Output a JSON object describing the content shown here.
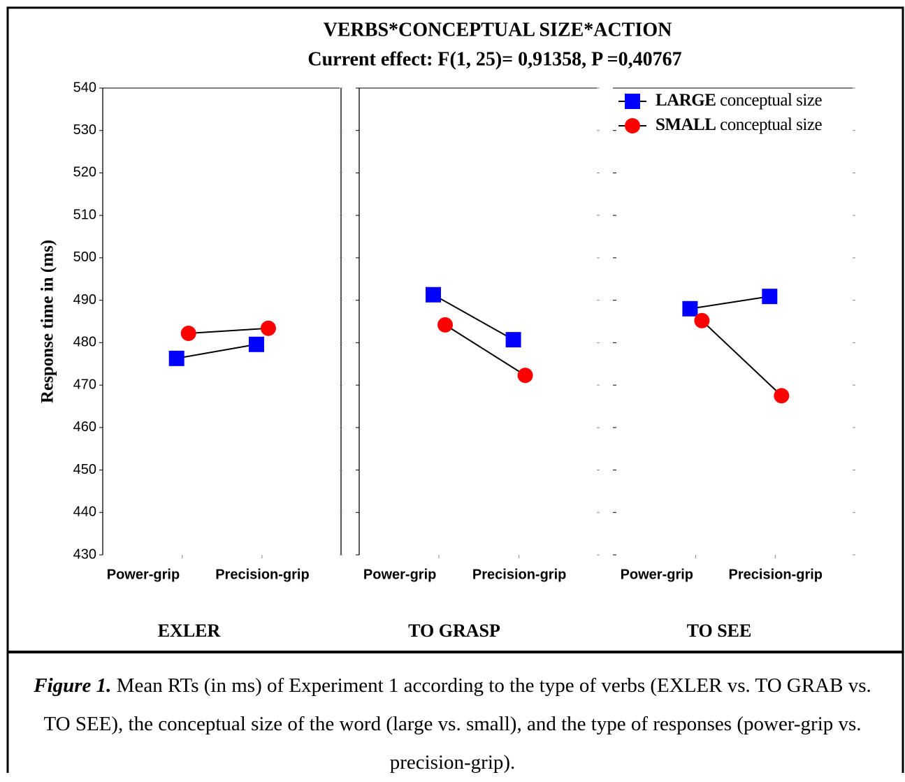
{
  "title": "VERBS*CONCEPTUAL SIZE*ACTION",
  "subtitle": "Current effect: F(1, 25)= 0,91358, P =0,40767",
  "chart_data": {
    "type": "line",
    "y_label": "Response time in (ms)",
    "panels": [
      "EXLER",
      "TO GRASP",
      "TO SEE"
    ],
    "categories": [
      "Power-grip",
      "Precision-grip"
    ],
    "series": [
      {
        "name": "LARGE conceptual size",
        "color": "#0000ff",
        "marker": "square",
        "values": [
          [
            476.3,
            479.6
          ],
          [
            491.3,
            480.7
          ],
          [
            488.0,
            490.9
          ]
        ]
      },
      {
        "name": "SMALL conceptual size",
        "color": "#ff0000",
        "marker": "circle",
        "values": [
          [
            482.2,
            483.4
          ],
          [
            484.2,
            472.3
          ],
          [
            485.2,
            467.5
          ]
        ]
      }
    ],
    "ylim": [
      430,
      540
    ],
    "yticks": [
      430,
      440,
      450,
      460,
      470,
      480,
      490,
      500,
      510,
      520,
      530,
      540
    ],
    "grid": false,
    "legend": "upper right"
  },
  "caption": {
    "label": "Figure 1.",
    "text": "Mean RTs (in ms) of Experiment 1 according to the type of verbs (EXLER vs. TO GRAB vs. TO SEE), the conceptual size of the word (large vs. small), and the type of responses (power-grip vs. precision-grip)."
  }
}
